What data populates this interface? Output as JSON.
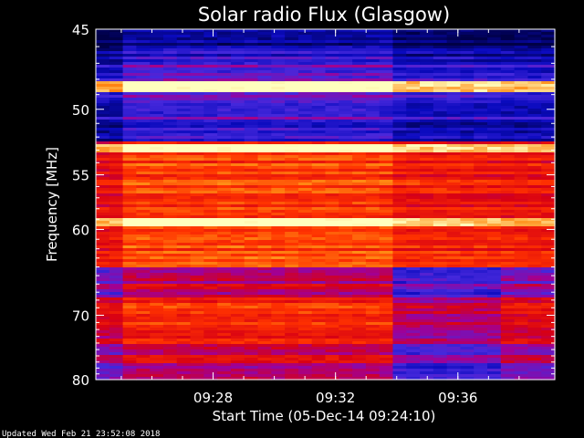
{
  "chart_data": {
    "type": "heatmap",
    "title": "Solar radio Flux (Glasgow)",
    "xlabel": "Start Time (05-Dec-14 09:24:10)",
    "ylabel": "Frequency [MHz]",
    "x_ticks": [
      "09:28",
      "09:32",
      "09:36"
    ],
    "x_tick_minutes": [
      3.833,
      7.833,
      11.833
    ],
    "xlim_minutes": [
      0,
      15
    ],
    "y_ticks": [
      45,
      50,
      55,
      60,
      70,
      80
    ],
    "ylim": [
      45,
      80
    ],
    "y_scale": "reciprocal",
    "background_color": "#000000",
    "bright_emission_lines_mhz": [
      48.5,
      52.8,
      59.3
    ],
    "segment_breaks_minutes": [
      1.1,
      9.7,
      13.3
    ]
  },
  "footer": {
    "updated": "Updated Wed Feb 21 23:52:08 2018"
  }
}
